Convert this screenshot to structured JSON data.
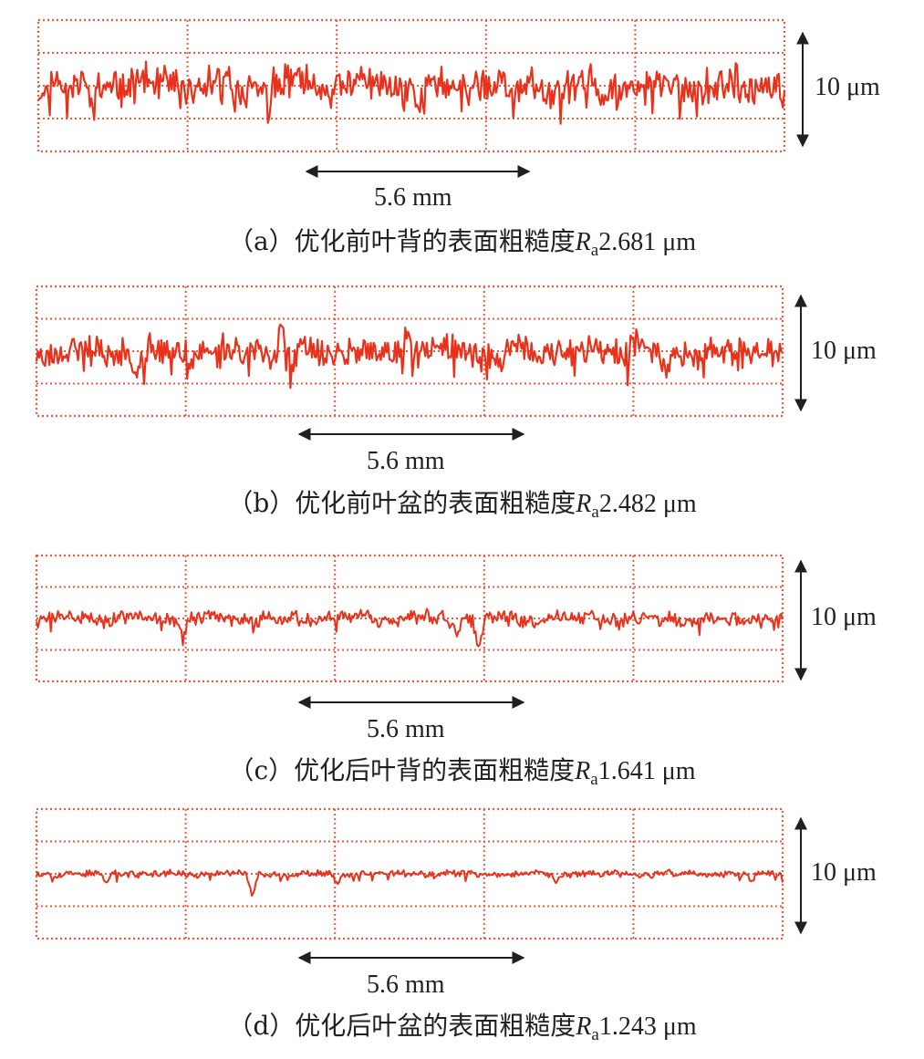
{
  "colors": {
    "profile": "#e8321c",
    "grid": "#ef5a3c",
    "ink": "#231f20"
  },
  "horizontal_scale_label": "5.6 mm",
  "vertical_scale_label": "10 μm",
  "panels": [
    {
      "prefix": "（a）优化前叶背的表面粗糙度",
      "ra_symbol": "R",
      "ra_subscript": "a",
      "ra_value": "2.681 μm"
    },
    {
      "prefix": "（b）优化前叶盆的表面粗糙度",
      "ra_symbol": "R",
      "ra_subscript": "a",
      "ra_value": "2.482 μm"
    },
    {
      "prefix": "（c）优化后叶背的表面粗糙度",
      "ra_symbol": "R",
      "ra_subscript": "a",
      "ra_value": "1.641 μm"
    },
    {
      "prefix": "（d）优化后叶盆的表面粗糙度",
      "ra_symbol": "R",
      "ra_subscript": "a",
      "ra_value": "1.243 μm"
    }
  ],
  "chart_data": [
    {
      "type": "line",
      "x_range_mm": [
        0,
        28
      ],
      "y_range_um": [
        -10,
        10
      ],
      "x_gridlines": 5,
      "y_gridlines": 4,
      "grid": true,
      "grid_style": "dotted",
      "profile": {
        "amplitude_um": 4.5,
        "seed": 11,
        "dips": [
          {
            "x": 2.0,
            "depth": -3.5
          },
          {
            "x": 8.6,
            "depth": -2.5
          },
          {
            "x": 14.4,
            "depth": -3
          },
          {
            "x": 17.8,
            "depth": -3.2
          },
          {
            "x": 21.2,
            "depth": -3.5
          }
        ]
      }
    },
    {
      "type": "line",
      "x_range_mm": [
        0,
        28
      ],
      "y_range_um": [
        -10,
        10
      ],
      "x_gridlines": 5,
      "y_gridlines": 4,
      "grid": true,
      "grid_style": "dotted",
      "profile": {
        "amplitude_um": 3.8,
        "seed": 23,
        "dips": [
          {
            "x": 3.8,
            "depth": -3.0
          },
          {
            "x": 9.2,
            "depth": 3.5
          },
          {
            "x": 9.6,
            "depth": -3.5
          },
          {
            "x": 13.9,
            "depth": 3.2
          },
          {
            "x": 17.4,
            "depth": -2.5
          },
          {
            "x": 23.6,
            "depth": -3.5
          },
          {
            "x": 22.5,
            "depth": 2.8
          }
        ]
      }
    },
    {
      "type": "line",
      "x_range_mm": [
        0,
        28
      ],
      "y_range_um": [
        -10,
        10
      ],
      "x_gridlines": 5,
      "y_gridlines": 4,
      "grid": true,
      "grid_style": "dotted",
      "profile": {
        "amplitude_um": 2.0,
        "seed": 37,
        "dips": [
          {
            "x": 5.5,
            "depth": -3.2
          },
          {
            "x": 16.6,
            "depth": -5.5
          },
          {
            "x": 15.8,
            "depth": -2.2
          },
          {
            "x": 20.8,
            "depth": 1.5
          }
        ]
      }
    },
    {
      "type": "line",
      "x_range_mm": [
        0,
        28
      ],
      "y_range_um": [
        -10,
        10
      ],
      "x_gridlines": 5,
      "y_gridlines": 4,
      "grid": true,
      "grid_style": "dotted",
      "profile": {
        "amplitude_um": 0.9,
        "seed": 53,
        "dips": [
          {
            "x": 2.6,
            "depth": -1.5
          },
          {
            "x": 8.1,
            "depth": -3.2
          },
          {
            "x": 11.3,
            "depth": -1.5
          },
          {
            "x": 19.5,
            "depth": -1.0
          },
          {
            "x": 26.8,
            "depth": -1.3
          }
        ]
      }
    }
  ]
}
